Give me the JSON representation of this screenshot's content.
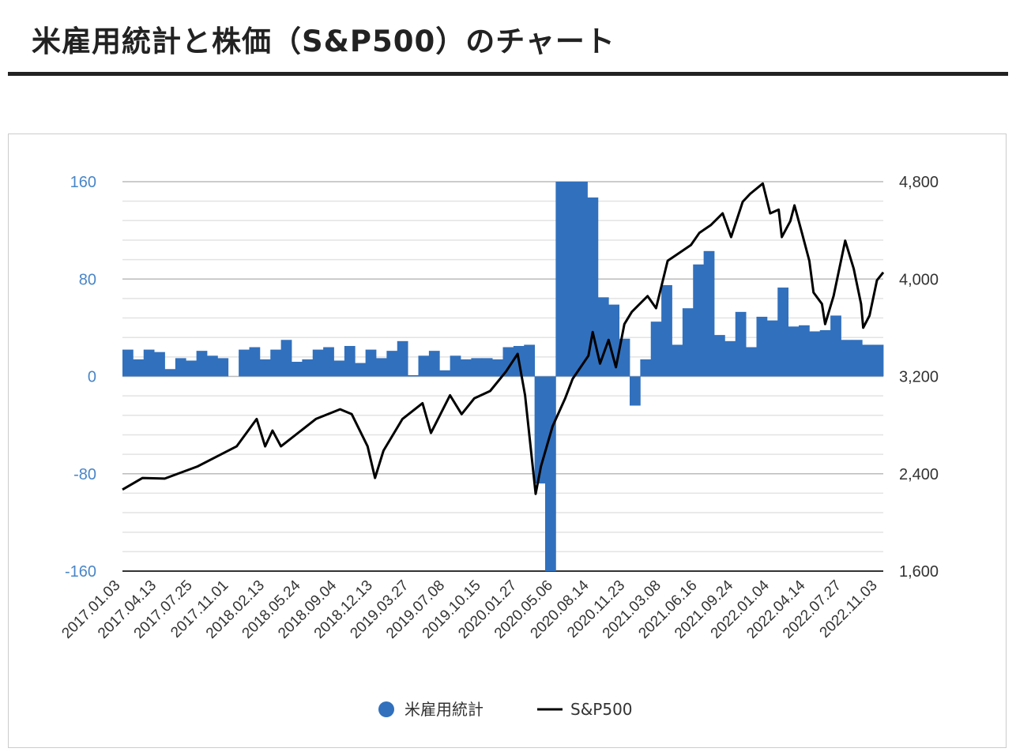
{
  "page": {
    "title": "米雇用統計と株価（S&P500）のチャート"
  },
  "chart_data": {
    "type": "bar+line",
    "title": "米雇用統計と株価（S&P500）のチャート",
    "left_axis": {
      "ylim": [
        -160,
        160
      ],
      "ticks": [
        "160",
        "80",
        "0",
        "-80",
        "-160"
      ],
      "tick_values": [
        160,
        80,
        0,
        -80,
        -160
      ],
      "minor_step": 16
    },
    "right_axis": {
      "ylim": [
        1600,
        4800
      ],
      "ticks": [
        "4,800",
        "4,000",
        "3,200",
        "2,400",
        "1,600"
      ],
      "tick_values": [
        4800,
        4000,
        3200,
        2400,
        1600
      ]
    },
    "x_ticks": [
      "2017.01.03",
      "2017.04.13",
      "2017.07.25",
      "2017.11.01",
      "2018.02.13",
      "2018.05.24",
      "2018.09.04",
      "2018.12.13",
      "2019.03.27",
      "2019.07.08",
      "2019.10.15",
      "2020.01.27",
      "2020.05.06",
      "2020.08.14",
      "2020.11.23",
      "2021.03.08",
      "2021.06.16",
      "2021.09.24",
      "2022.01.04",
      "2022.04.14",
      "2022.07.27",
      "2022.11.03"
    ],
    "x_range_months": [
      0,
      72
    ],
    "legend": {
      "position": "bottom",
      "items": [
        {
          "label": "米雇用統計",
          "color": "#3170bd",
          "marker": "circle"
        },
        {
          "label": "S&P500",
          "color": "#000000",
          "marker": "line"
        }
      ]
    },
    "series": [
      {
        "name": "米雇用統計",
        "type": "bar",
        "axis": "left",
        "color": "#3170bd",
        "values": [
          22,
          14,
          22,
          20,
          6,
          15,
          13,
          21,
          17,
          15,
          0,
          22,
          24,
          14,
          22,
          30,
          12,
          14,
          22,
          24,
          13,
          25,
          11,
          22,
          15,
          21,
          29,
          1,
          17,
          21,
          5,
          17,
          14,
          15,
          15,
          14,
          24,
          25,
          26,
          -88,
          -160,
          160,
          160,
          160,
          147,
          65,
          59,
          31,
          -24,
          14,
          45,
          75,
          26,
          56,
          92,
          103,
          34,
          29,
          53,
          24,
          49,
          46,
          73,
          41,
          42,
          37,
          38,
          50,
          30,
          30,
          26,
          26
        ]
      },
      {
        "name": "S&P500",
        "type": "line",
        "axis": "right",
        "color": "#000000",
        "points": [
          [
            0,
            2270
          ],
          [
            1.9,
            2365
          ],
          [
            4,
            2360
          ],
          [
            7.1,
            2460
          ],
          [
            10.8,
            2625
          ],
          [
            12.7,
            2850
          ],
          [
            13.5,
            2625
          ],
          [
            14.2,
            2755
          ],
          [
            15,
            2625
          ],
          [
            18.3,
            2850
          ],
          [
            20.6,
            2930
          ],
          [
            21.7,
            2890
          ],
          [
            23.2,
            2625
          ],
          [
            23.9,
            2365
          ],
          [
            24.7,
            2590
          ],
          [
            26.5,
            2850
          ],
          [
            28.4,
            2980
          ],
          [
            29.2,
            2735
          ],
          [
            31,
            3045
          ],
          [
            32.1,
            2890
          ],
          [
            33.3,
            3020
          ],
          [
            34.8,
            3080
          ],
          [
            36.3,
            3240
          ],
          [
            37.4,
            3385
          ],
          [
            38.1,
            3045
          ],
          [
            39.1,
            2235
          ],
          [
            39.6,
            2460
          ],
          [
            40.7,
            2790
          ],
          [
            41.9,
            3020
          ],
          [
            42.6,
            3180
          ],
          [
            44.1,
            3370
          ],
          [
            44.5,
            3565
          ],
          [
            45.2,
            3305
          ],
          [
            46,
            3500
          ],
          [
            46.7,
            3275
          ],
          [
            47.5,
            3630
          ],
          [
            48.2,
            3730
          ],
          [
            49.7,
            3860
          ],
          [
            50.5,
            3760
          ],
          [
            51.6,
            4150
          ],
          [
            52.7,
            4215
          ],
          [
            53.8,
            4280
          ],
          [
            54.6,
            4380
          ],
          [
            55.7,
            4445
          ],
          [
            56.8,
            4540
          ],
          [
            57.6,
            4345
          ],
          [
            58.7,
            4635
          ],
          [
            59.4,
            4700
          ],
          [
            60.6,
            4785
          ],
          [
            61.3,
            4540
          ],
          [
            62.1,
            4570
          ],
          [
            62.4,
            4345
          ],
          [
            63.2,
            4475
          ],
          [
            63.6,
            4605
          ],
          [
            64.3,
            4380
          ],
          [
            65,
            4150
          ],
          [
            65.4,
            3890
          ],
          [
            66.2,
            3795
          ],
          [
            66.5,
            3630
          ],
          [
            67.3,
            3860
          ],
          [
            68.4,
            4315
          ],
          [
            69.2,
            4085
          ],
          [
            69.9,
            3795
          ],
          [
            70.1,
            3600
          ],
          [
            70.7,
            3700
          ],
          [
            71.4,
            3990
          ],
          [
            72,
            4055
          ]
        ]
      }
    ]
  }
}
